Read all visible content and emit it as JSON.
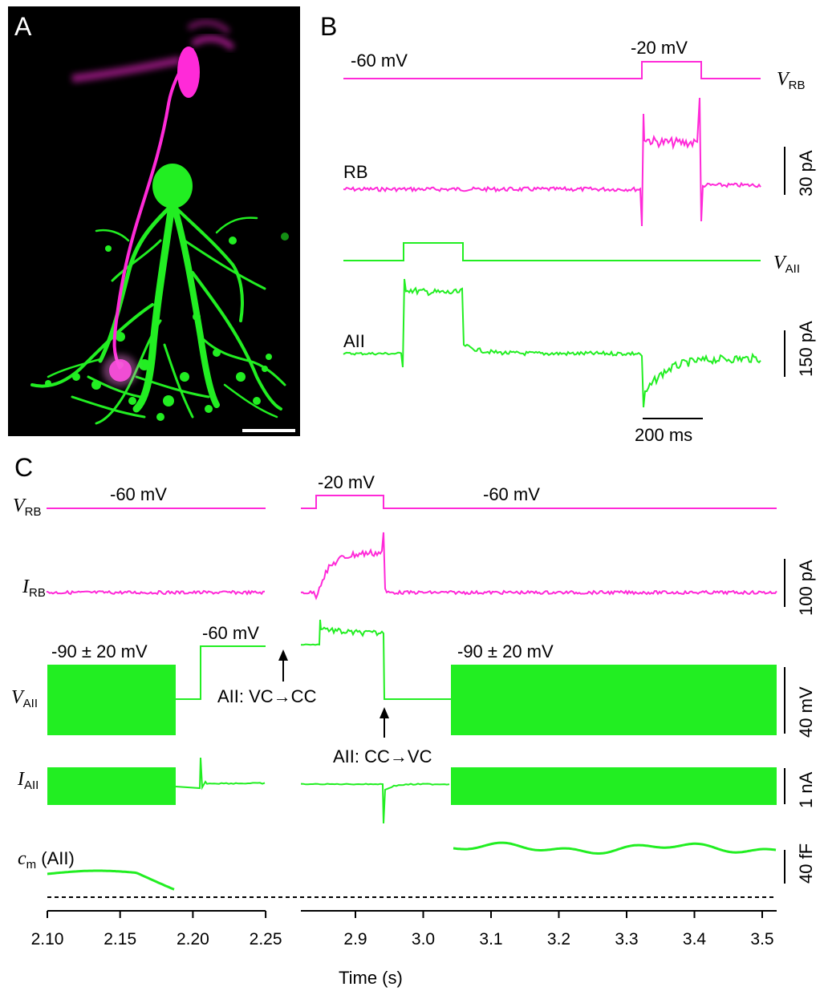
{
  "colors": {
    "rb": "#ff2ad8",
    "aii": "#22ee22",
    "black": "#000000",
    "micro_bg": "#000000"
  },
  "panel_a": {
    "letter": "A",
    "image_description_icons": [
      "rod-bipolar-cell-magenta",
      "aii-amacrine-cell-green",
      "scale-bar"
    ]
  },
  "panel_b": {
    "letter": "B",
    "v_rb_hold": "-60 mV",
    "v_rb_step": "-20 mV",
    "v_rb_label": "V",
    "v_rb_sub": "RB",
    "rb_label": "RB",
    "rb_scale": "30 pA",
    "v_aii_label": "V",
    "v_aii_sub": "AII",
    "aii_label": "AII",
    "aii_scale": "150 pA",
    "time_scale": "200 ms"
  },
  "panel_c": {
    "letter": "C",
    "v_rb_label": "V",
    "v_rb_sub": "RB",
    "v_rb_hold_left": "-60 mV",
    "v_rb_step": "-20 mV",
    "v_rb_hold_right": "-60 mV",
    "i_rb_label": "I",
    "i_rb_sub": "RB",
    "i_rb_scale": "100 pA",
    "v_aii_label": "V",
    "v_aii_sub": "AII",
    "v_aii_sine_left": "-90 ± 20 mV",
    "v_aii_cc": "-60 mV",
    "v_aii_sine_right": "-90 ± 20 mV",
    "v_aii_scale": "40 mV",
    "switch_vc_cc": "AII: VC→CC",
    "switch_cc_vc": "AII: CC→VC",
    "i_aii_label": "I",
    "i_aii_sub": "AII",
    "i_aii_scale": "1 nA",
    "cm_label": "c",
    "cm_sub": "m",
    "cm_suffix": " (AII)",
    "cm_scale": "40 fF",
    "x_axis_title": "Time (s)",
    "x_ticks_left": [
      "2.10",
      "2.15",
      "2.20",
      "2.25"
    ],
    "x_ticks_right": [
      "2.9",
      "3.0",
      "3.1",
      "3.2",
      "3.3",
      "3.4",
      "3.5"
    ]
  }
}
